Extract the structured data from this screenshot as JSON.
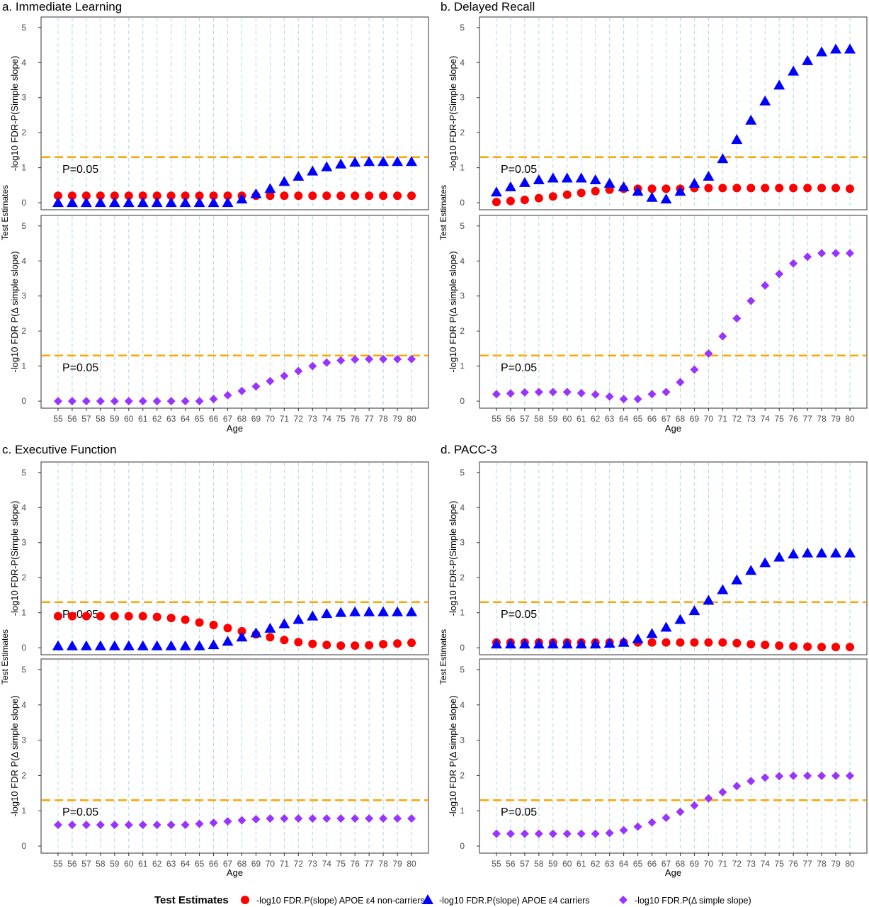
{
  "figure": {
    "p_label": "P=0.05",
    "x_axis_label": "Age",
    "y_axis_label_shared": "Test Estimates",
    "y_axis_label_top": "-log10 FDR-P(Simple slope)",
    "y_axis_label_bottom": "-log10 FDR P(Δ simple slope)",
    "threshold_value": 1.30103
  },
  "legend": {
    "title": "Test Estimates",
    "items": [
      {
        "label": "-log10 FDR.P(slope) APOE ε4 non-carriers",
        "color": "#ff0000",
        "shape": "circle"
      },
      {
        "label": "-log10 FDR.P(slope) APOE ε4 carriers",
        "color": "#0000ff",
        "shape": "triangle"
      },
      {
        "label": "-log10 FDR.P(Δ simple slope)",
        "color": "#9933ff",
        "shape": "diamond"
      }
    ]
  },
  "colors": {
    "non_carriers": "#ff0000",
    "carriers": "#0000ff",
    "delta": "#9933ff",
    "threshold": "#ffa500",
    "grid": "#add8e6",
    "axis_text": "#4d4d4d"
  },
  "chart_data": [
    {
      "type": "scatter",
      "title": "a. Immediate Learning",
      "x": [
        55,
        56,
        57,
        58,
        59,
        60,
        61,
        62,
        63,
        64,
        65,
        66,
        67,
        68,
        69,
        70,
        71,
        72,
        73,
        74,
        75,
        76,
        77,
        78,
        79,
        80
      ],
      "ylim": [
        0,
        5
      ],
      "xlabel": "Age",
      "ylabel": "Test Estimates",
      "grid": "vertical dashed",
      "top": {
        "ylabel": "-log10 FDR-P(Simple slope)",
        "series": [
          {
            "key": "non_carriers",
            "values": [
              0.2,
              0.2,
              0.2,
              0.2,
              0.2,
              0.2,
              0.2,
              0.2,
              0.2,
              0.2,
              0.2,
              0.2,
              0.2,
              0.2,
              0.2,
              0.2,
              0.2,
              0.2,
              0.2,
              0.2,
              0.2,
              0.2,
              0.2,
              0.2,
              0.2,
              0.2
            ]
          },
          {
            "key": "carriers",
            "values": [
              0.0,
              0.0,
              0.0,
              0.0,
              0.0,
              0.0,
              0.0,
              0.0,
              0.0,
              0.0,
              0.0,
              0.0,
              0.0,
              0.1,
              0.25,
              0.4,
              0.6,
              0.75,
              0.9,
              1.02,
              1.1,
              1.15,
              1.17,
              1.17,
              1.17,
              1.17
            ]
          }
        ]
      },
      "bottom": {
        "ylabel": "-log10 FDR P(Δ simple slope)",
        "series": [
          {
            "key": "delta",
            "values": [
              0.0,
              0.0,
              0.0,
              0.0,
              0.0,
              0.0,
              0.0,
              0.0,
              0.0,
              0.0,
              0.0,
              0.06,
              0.17,
              0.29,
              0.42,
              0.57,
              0.72,
              0.86,
              1.0,
              1.1,
              1.16,
              1.19,
              1.2,
              1.2,
              1.2,
              1.2
            ]
          }
        ]
      }
    },
    {
      "type": "scatter",
      "title": "b. Delayed Recall",
      "x": [
        55,
        56,
        57,
        58,
        59,
        60,
        61,
        62,
        63,
        64,
        65,
        66,
        67,
        68,
        69,
        70,
        71,
        72,
        73,
        74,
        75,
        76,
        77,
        78,
        79,
        80
      ],
      "ylim": [
        0,
        5
      ],
      "xlabel": "Age",
      "ylabel": "Test Estimates",
      "grid": "vertical dashed",
      "top": {
        "ylabel": "-log10 FDR-P(Simple slope)",
        "series": [
          {
            "key": "non_carriers",
            "values": [
              0.02,
              0.05,
              0.08,
              0.13,
              0.18,
              0.23,
              0.28,
              0.33,
              0.37,
              0.4,
              0.4,
              0.4,
              0.4,
              0.4,
              0.42,
              0.42,
              0.42,
              0.42,
              0.42,
              0.42,
              0.42,
              0.42,
              0.42,
              0.42,
              0.42,
              0.4
            ]
          },
          {
            "key": "carriers",
            "values": [
              0.3,
              0.45,
              0.57,
              0.65,
              0.7,
              0.7,
              0.7,
              0.65,
              0.55,
              0.45,
              0.32,
              0.15,
              0.1,
              0.32,
              0.55,
              0.75,
              1.25,
              1.8,
              2.35,
              2.9,
              3.35,
              3.75,
              4.05,
              4.3,
              4.38,
              4.38
            ]
          }
        ]
      },
      "bottom": {
        "ylabel": "-log10 FDR P(Δ simple slope)",
        "series": [
          {
            "key": "delta",
            "values": [
              0.2,
              0.22,
              0.25,
              0.26,
              0.26,
              0.26,
              0.23,
              0.19,
              0.13,
              0.06,
              0.06,
              0.2,
              0.26,
              0.54,
              0.9,
              1.36,
              1.85,
              2.36,
              2.86,
              3.3,
              3.63,
              3.93,
              4.12,
              4.22,
              4.22,
              4.22
            ]
          }
        ]
      }
    },
    {
      "type": "scatter",
      "title": "c. Executive Function",
      "x": [
        55,
        56,
        57,
        58,
        59,
        60,
        61,
        62,
        63,
        64,
        65,
        66,
        67,
        68,
        69,
        70,
        71,
        72,
        73,
        74,
        75,
        76,
        77,
        78,
        79,
        80
      ],
      "ylim": [
        0,
        5
      ],
      "xlabel": "Age",
      "ylabel": "Test Estimates",
      "grid": "vertical dashed",
      "top": {
        "ylabel": "-log10 FDR-P(Simple slope)",
        "series": [
          {
            "key": "non_carriers",
            "values": [
              0.9,
              0.9,
              0.9,
              0.9,
              0.9,
              0.9,
              0.9,
              0.88,
              0.85,
              0.8,
              0.72,
              0.65,
              0.56,
              0.47,
              0.38,
              0.3,
              0.22,
              0.16,
              0.11,
              0.08,
              0.06,
              0.06,
              0.07,
              0.1,
              0.12,
              0.14
            ]
          },
          {
            "key": "carriers",
            "values": [
              0.05,
              0.05,
              0.05,
              0.05,
              0.05,
              0.05,
              0.05,
              0.05,
              0.05,
              0.05,
              0.05,
              0.08,
              0.18,
              0.3,
              0.42,
              0.55,
              0.68,
              0.8,
              0.9,
              0.97,
              1.0,
              1.02,
              1.02,
              1.02,
              1.02,
              1.02
            ]
          }
        ]
      },
      "bottom": {
        "ylabel": "-log10 FDR P(Δ simple slope)",
        "series": [
          {
            "key": "delta",
            "values": [
              0.6,
              0.6,
              0.6,
              0.6,
              0.6,
              0.6,
              0.6,
              0.6,
              0.6,
              0.6,
              0.63,
              0.66,
              0.7,
              0.73,
              0.76,
              0.78,
              0.78,
              0.78,
              0.78,
              0.78,
              0.78,
              0.78,
              0.78,
              0.78,
              0.78,
              0.78
            ]
          }
        ]
      }
    },
    {
      "type": "scatter",
      "title": "d. PACC-3",
      "x": [
        55,
        56,
        57,
        58,
        59,
        60,
        61,
        62,
        63,
        64,
        65,
        66,
        67,
        68,
        69,
        70,
        71,
        72,
        73,
        74,
        75,
        76,
        77,
        78,
        79,
        80
      ],
      "ylim": [
        0,
        5
      ],
      "xlabel": "Age",
      "ylabel": "Test Estimates",
      "grid": "vertical dashed",
      "top": {
        "ylabel": "-log10 FDR-P(Simple slope)",
        "series": [
          {
            "key": "non_carriers",
            "values": [
              0.15,
              0.15,
              0.15,
              0.15,
              0.15,
              0.15,
              0.15,
              0.15,
              0.15,
              0.15,
              0.15,
              0.15,
              0.15,
              0.15,
              0.15,
              0.15,
              0.15,
              0.13,
              0.1,
              0.08,
              0.06,
              0.04,
              0.03,
              0.02,
              0.02,
              0.02
            ]
          },
          {
            "key": "carriers",
            "values": [
              0.1,
              0.1,
              0.1,
              0.1,
              0.1,
              0.1,
              0.1,
              0.1,
              0.12,
              0.15,
              0.25,
              0.4,
              0.58,
              0.8,
              1.05,
              1.35,
              1.65,
              1.93,
              2.2,
              2.42,
              2.58,
              2.67,
              2.7,
              2.7,
              2.7,
              2.7
            ]
          }
        ]
      },
      "bottom": {
        "ylabel": "-log10 FDR P(Δ simple slope)",
        "series": [
          {
            "key": "delta",
            "values": [
              0.35,
              0.35,
              0.35,
              0.35,
              0.35,
              0.35,
              0.35,
              0.35,
              0.37,
              0.45,
              0.55,
              0.67,
              0.8,
              0.97,
              1.15,
              1.35,
              1.53,
              1.7,
              1.84,
              1.94,
              1.98,
              1.99,
              1.99,
              1.99,
              1.99,
              1.99
            ]
          }
        ]
      }
    }
  ]
}
